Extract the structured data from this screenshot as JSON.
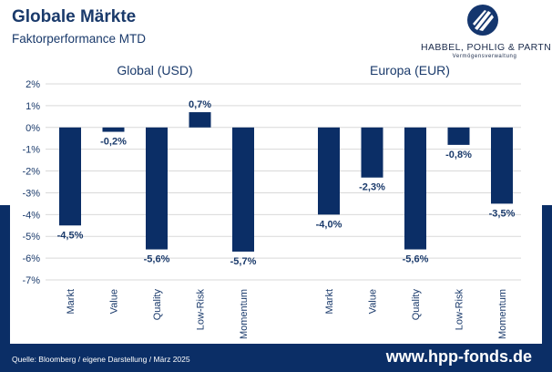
{
  "header": {
    "title": "Globale Märkte",
    "subtitle": "Faktorperformance MTD"
  },
  "logo": {
    "name": "HABBEL, POHLIG & PARTNER",
    "tagline": "Vermögensverwaltung"
  },
  "footer": {
    "source": "Quelle: Bloomberg / eigene Darstellung / März 2025",
    "url": "www.hpp-fonds.de"
  },
  "colors": {
    "bar": "#0b2e66",
    "grid": "#d9d9d9",
    "text": "#1a3a6b",
    "band": "#0b2e66"
  },
  "chart_data": {
    "type": "bar",
    "yunit": "%",
    "ylim": [
      -7,
      2
    ],
    "yticks": [
      2,
      1,
      0,
      -1,
      -2,
      -3,
      -4,
      -5,
      -6,
      -7
    ],
    "ytick_labels": [
      "2%",
      "1%",
      "0%",
      "-1%",
      "-2%",
      "-3%",
      "-4%",
      "-5%",
      "-6%",
      "-7%"
    ],
    "categories": [
      "Markt",
      "Value",
      "Quality",
      "Low-Risk",
      "Momentum"
    ],
    "groups": [
      {
        "name": "Global (USD)",
        "values": [
          -4.5,
          -0.2,
          -5.6,
          0.7,
          -5.7
        ],
        "labels": [
          "-4,5%",
          "-0,2%",
          "-5,6%",
          "0,7%",
          "-5,7%"
        ]
      },
      {
        "name": "Europa (EUR)",
        "values": [
          -4.0,
          -2.3,
          -5.6,
          -0.8,
          -3.5
        ],
        "labels": [
          "-4,0%",
          "-2,3%",
          "-5,6%",
          "-0,8%",
          "-3,5%"
        ]
      }
    ],
    "grid": true,
    "legend": "none"
  }
}
